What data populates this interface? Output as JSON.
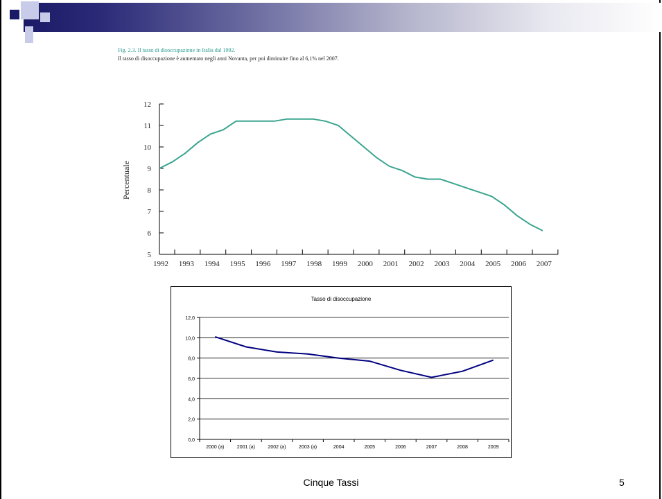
{
  "slide": {
    "figure_caption": "Fig. 2.3. Il tasso di disoccupazione in Italia dal 1992.",
    "figure_subtitle": "Il tasso di disoccupazione è aumentato negli anni Novanta, per poi diminuire fino al 6,1% nel 2007.",
    "footer": "Cinque Tassi",
    "page_number": "5",
    "colors": {
      "accent_bar": "#1a1a66",
      "teal_line": "#3aa58f",
      "navy_line": "#000080"
    }
  },
  "chart_data": [
    {
      "type": "line",
      "title": "",
      "xlabel": "",
      "ylabel": "Percentuale",
      "ylim": [
        5,
        12
      ],
      "yticks": [
        5,
        6,
        7,
        8,
        9,
        10,
        11,
        12
      ],
      "grid": false,
      "categories": [
        "1992",
        "1993",
        "1994",
        "1995",
        "1996",
        "1997",
        "1998",
        "1999",
        "2000",
        "2001",
        "2002",
        "2003",
        "2004",
        "2005",
        "2006",
        "2007"
      ],
      "x": [
        1992,
        1992.5,
        1993,
        1993.5,
        1994,
        1994.5,
        1995,
        1995.5,
        1996,
        1996.5,
        1997,
        1997.5,
        1998,
        1998.5,
        1999,
        1999.5,
        2000,
        2000.5,
        2001,
        2001.5,
        2002,
        2002.5,
        2003,
        2003.5,
        2004,
        2004.5,
        2005,
        2005.5,
        2006,
        2006.5,
        2007
      ],
      "values": [
        9.0,
        9.3,
        9.7,
        10.2,
        10.6,
        10.8,
        11.2,
        11.2,
        11.2,
        11.2,
        11.3,
        11.3,
        11.3,
        11.2,
        11.0,
        10.5,
        10.0,
        9.5,
        9.1,
        8.9,
        8.6,
        8.5,
        8.5,
        8.3,
        8.1,
        7.9,
        7.7,
        7.3,
        6.8,
        6.4,
        6.1
      ]
    },
    {
      "type": "line",
      "title": "Tasso di disoccupazione",
      "xlabel": "",
      "ylabel": "",
      "ylim": [
        0,
        12
      ],
      "yticks": [
        "0,0",
        "2,0",
        "4,0",
        "6,0",
        "8,0",
        "10,0",
        "12,0"
      ],
      "grid": true,
      "categories": [
        "2000 (a)",
        "2001 (a)",
        "2002 (a)",
        "2003 (a)",
        "2004",
        "2005",
        "2006",
        "2007",
        "2008",
        "2009"
      ],
      "values": [
        10.1,
        9.1,
        8.6,
        8.4,
        8.0,
        7.7,
        6.8,
        6.1,
        6.7,
        7.8
      ]
    }
  ]
}
